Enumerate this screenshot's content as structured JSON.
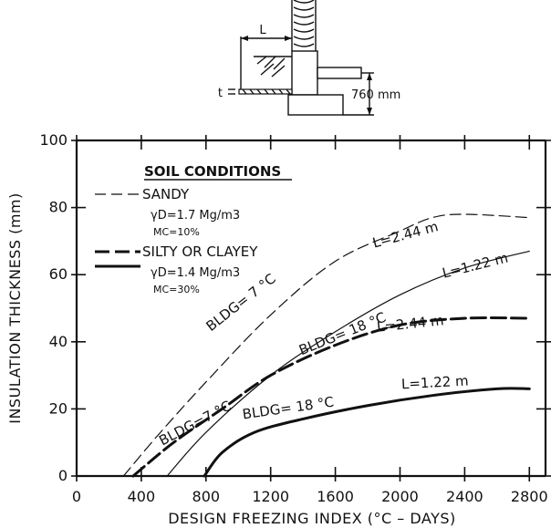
{
  "diagram": {
    "l_label": "L",
    "t_label": "t",
    "depth_label": "760 mm"
  },
  "chart_data": {
    "type": "line",
    "xlabel": "DESIGN FREEZING INDEX (°C – DAYS)",
    "ylabel": "INSULATION THICKNESS (mm)",
    "xlim": [
      0,
      2900
    ],
    "ylim": [
      0,
      100
    ],
    "xticks": [
      0,
      400,
      800,
      1200,
      1600,
      2000,
      2400,
      2800
    ],
    "yticks": [
      0,
      20,
      40,
      60,
      80,
      100
    ],
    "grid": false,
    "legend": {
      "placement": "top-left",
      "title": "SOIL CONDITIONS",
      "entries": [
        {
          "label": "SANDY",
          "line_style": "thin-dashed",
          "details": [
            "γD=1.7 Mg/m3",
            "MC=10%"
          ]
        },
        {
          "label": "SILTY OR CLAYEY",
          "line_style": "thick-dashed",
          "details": [
            "γD=1.4 Mg/m3",
            "MC=30%"
          ]
        }
      ]
    },
    "series": [
      {
        "name": "SANDY, BLDG = 7 °C, L = 2.44 m",
        "style": "thin-dashed",
        "x": [
          290,
          500,
          800,
          1200,
          1600,
          2000,
          2200,
          2400,
          2800
        ],
        "y": [
          0,
          12,
          28,
          48,
          64,
          73,
          77,
          78,
          77
        ]
      },
      {
        "name": "SANDY, BLDG = 18 °C, L = 1.22 m",
        "style": "thin-solid",
        "x": [
          560,
          800,
          1200,
          1600,
          2000,
          2400,
          2800
        ],
        "y": [
          0,
          13,
          30,
          43,
          54,
          62,
          67
        ]
      },
      {
        "name": "SILTY OR CLAYEY, BLDG = 7 °C, L = 2.44 m",
        "style": "thick-dashed",
        "x": [
          350,
          600,
          900,
          1200,
          1600,
          2000,
          2400,
          2800
        ],
        "y": [
          0,
          10,
          20,
          30,
          39,
          45,
          47,
          47
        ]
      },
      {
        "name": "SILTY OR CLAYEY, BLDG = 18 °C, L = 1.22 m",
        "style": "thick-solid",
        "x": [
          790,
          900,
          1100,
          1400,
          1800,
          2200,
          2600,
          2800
        ],
        "y": [
          0,
          7,
          13,
          17,
          21,
          24,
          26,
          26
        ]
      }
    ],
    "annotations": [
      {
        "text": "L=2.44 m",
        "x": 1840,
        "y": 68,
        "angle": -15
      },
      {
        "text": "BLDG= 7 °C",
        "x": 830,
        "y": 43,
        "angle": -38
      },
      {
        "text": "L=1.22 m",
        "x": 2270,
        "y": 59,
        "angle": -14
      },
      {
        "text": "BLDG= 18 °C",
        "x": 1390,
        "y": 36,
        "angle": -22
      },
      {
        "text": "L=2.44 m",
        "x": 1860,
        "y": 43,
        "angle": -6
      },
      {
        "text": "BLDG=7 °C",
        "x": 530,
        "y": 9,
        "angle": -28
      },
      {
        "text": "L=1.22 m",
        "x": 2010,
        "y": 26,
        "angle": -3
      },
      {
        "text": "BLDG= 18 °C",
        "x": 1030,
        "y": 17,
        "angle": -8
      }
    ]
  }
}
